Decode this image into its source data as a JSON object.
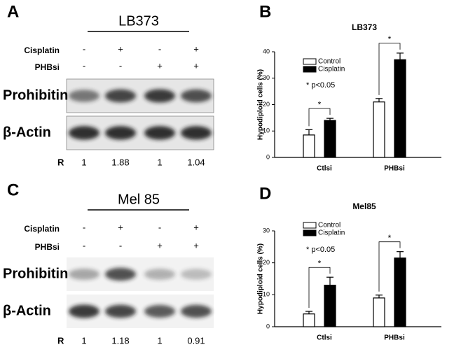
{
  "blots": [
    {
      "panel": "A",
      "cell_line": "LB373",
      "rows": [
        {
          "label": "Cisplatin",
          "marks": [
            "-",
            "+",
            "-",
            "+"
          ]
        },
        {
          "label": "PHBsi",
          "marks": [
            "-",
            "-",
            "+",
            "+"
          ]
        }
      ],
      "bands": [
        "Prohibitin",
        "β-Actin"
      ],
      "ratio_label": "R",
      "ratios": [
        1,
        1.88,
        1,
        1.04
      ]
    },
    {
      "panel": "C",
      "cell_line": "Mel 85",
      "rows": [
        {
          "label": "Cisplatin",
          "marks": [
            "-",
            "+",
            "-",
            "+"
          ]
        },
        {
          "label": "PHBsi",
          "marks": [
            "-",
            "-",
            "+",
            "+"
          ]
        }
      ],
      "bands": [
        "Prohibitin",
        "β-Actin"
      ],
      "ratio_label": "R",
      "ratios": [
        1,
        1.18,
        1,
        0.91
      ]
    }
  ],
  "chart_data": [
    {
      "type": "bar",
      "panel": "B",
      "title": "LB373",
      "y_label": "Hypodiploid cells (%)",
      "categories": [
        "Ctlsi",
        "PHBsi"
      ],
      "series": [
        {
          "name": "Control",
          "color": "#ffffff",
          "values": [
            8.5,
            21
          ],
          "errors": [
            2,
            1.3
          ]
        },
        {
          "name": "Cisplatin",
          "color": "#000000",
          "values": [
            14,
            37
          ],
          "errors": [
            0.8,
            2.5
          ]
        }
      ],
      "ylim": [
        0,
        40
      ],
      "yticks": [
        0,
        10,
        20,
        30,
        40
      ],
      "annotation": "* p<0.05",
      "significance": [
        "*",
        "*"
      ]
    },
    {
      "type": "bar",
      "panel": "D",
      "title": "Mel85",
      "y_label": "Hypodiploid cells (%)",
      "categories": [
        "Ctlsi",
        "PHBsi"
      ],
      "series": [
        {
          "name": "Control",
          "color": "#ffffff",
          "values": [
            4,
            9
          ],
          "errors": [
            0.8,
            0.9
          ]
        },
        {
          "name": "Cisplatin",
          "color": "#000000",
          "values": [
            13,
            21.5
          ],
          "errors": [
            2.5,
            2
          ]
        }
      ],
      "ylim": [
        0,
        30
      ],
      "yticks": [
        0,
        10,
        20,
        30
      ],
      "annotation": "* p<0.05",
      "significance": [
        "*",
        "*"
      ]
    }
  ]
}
